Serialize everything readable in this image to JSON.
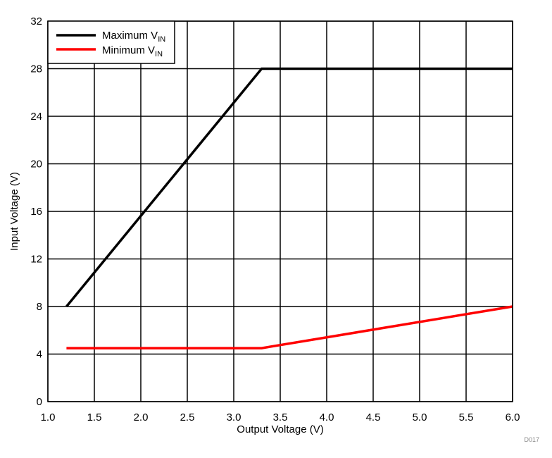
{
  "chart_data": {
    "type": "line",
    "xlabel": "Output Voltage (V)",
    "ylabel": "Input Voltage (V)",
    "xlim": [
      1.0,
      6.0
    ],
    "ylim": [
      0,
      32
    ],
    "x_ticks": [
      "1.0",
      "1.5",
      "2.0",
      "2.5",
      "3.0",
      "3.5",
      "4.0",
      "4.5",
      "5.0",
      "5.5",
      "6.0"
    ],
    "y_ticks": [
      "0",
      "4",
      "8",
      "12",
      "16",
      "20",
      "24",
      "28",
      "32"
    ],
    "grid": true,
    "legend_position": "top-left",
    "series": [
      {
        "name": "Maximum V",
        "name_sub": "IN",
        "color": "#000000",
        "points": [
          [
            1.2,
            8
          ],
          [
            3.3,
            28
          ],
          [
            6.0,
            28
          ]
        ]
      },
      {
        "name": "Minimum V",
        "name_sub": "IN",
        "color": "#ff0000",
        "points": [
          [
            1.2,
            4.5
          ],
          [
            3.3,
            4.5
          ],
          [
            6.0,
            8
          ]
        ]
      }
    ],
    "figure_code": "D017"
  }
}
